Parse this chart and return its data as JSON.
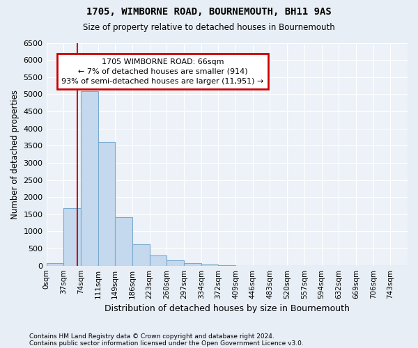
{
  "title1": "1705, WIMBORNE ROAD, BOURNEMOUTH, BH11 9AS",
  "title2": "Size of property relative to detached houses in Bournemouth",
  "xlabel": "Distribution of detached houses by size in Bournemouth",
  "ylabel": "Number of detached properties",
  "bar_labels": [
    "0sqm",
    "37sqm",
    "74sqm",
    "111sqm",
    "149sqm",
    "186sqm",
    "223sqm",
    "260sqm",
    "297sqm",
    "334sqm",
    "372sqm",
    "409sqm",
    "446sqm",
    "483sqm",
    "520sqm",
    "557sqm",
    "594sqm",
    "632sqm",
    "669sqm",
    "706sqm",
    "743sqm"
  ],
  "bar_values": [
    70,
    1680,
    5080,
    3600,
    1420,
    620,
    300,
    160,
    70,
    30,
    5,
    2,
    0,
    0,
    0,
    0,
    0,
    0,
    0,
    0,
    0
  ],
  "bar_color": "#c5d9ee",
  "bar_edge_color": "#7aaad0",
  "property_line_x": 66,
  "annotation_title": "1705 WIMBORNE ROAD: 66sqm",
  "annotation_line1": "← 7% of detached houses are smaller (914)",
  "annotation_line2": "93% of semi-detached houses are larger (11,951) →",
  "annotation_box_color": "#cc0000",
  "ylim": [
    0,
    6500
  ],
  "yticks": [
    0,
    500,
    1000,
    1500,
    2000,
    2500,
    3000,
    3500,
    4000,
    4500,
    5000,
    5500,
    6000,
    6500
  ],
  "footer1": "Contains HM Land Registry data © Crown copyright and database right 2024.",
  "footer2": "Contains public sector information licensed under the Open Government Licence v3.0.",
  "bg_color": "#e8eef5",
  "plot_bg_color": "#edf2f8",
  "grid_color": "#ffffff"
}
